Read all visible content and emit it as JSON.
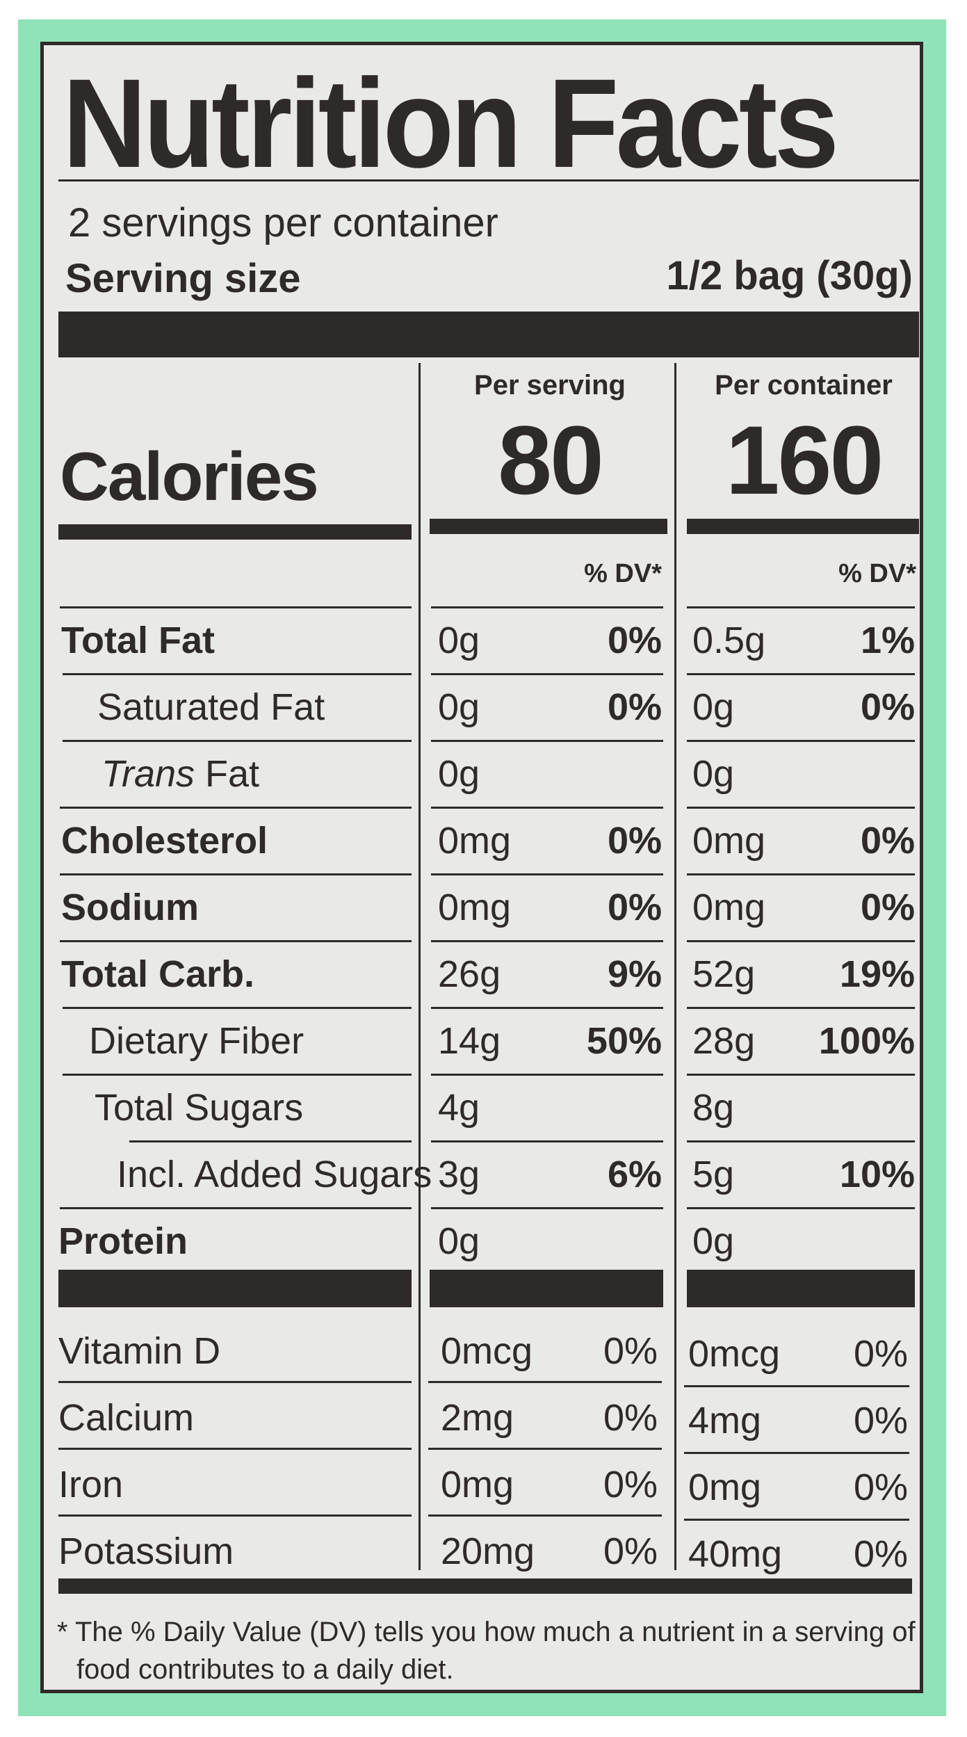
{
  "title": "Nutrition Facts",
  "servings_per_container": "2 servings per container",
  "serving_size_label": "Serving size",
  "serving_size_value": "1/2 bag (30g)",
  "calories_label": "Calories",
  "col1_header": "Per serving",
  "col2_header": "Per container",
  "col1_calories": "80",
  "col2_calories": "160",
  "dv_header": "% DV*",
  "rows": [
    {
      "label": "Total Fat",
      "a": "0g",
      "a_dv": "0%",
      "b": "0.5g",
      "b_dv": "1%"
    },
    {
      "label": "Saturated Fat",
      "a": "0g",
      "a_dv": "0%",
      "b": "0g",
      "b_dv": "0%"
    },
    {
      "label_italic": "Trans",
      "label": " Fat",
      "a": "0g",
      "a_dv": "",
      "b": "0g",
      "b_dv": ""
    },
    {
      "label": "Cholesterol",
      "a": "0mg",
      "a_dv": "0%",
      "b": "0mg",
      "b_dv": "0%"
    },
    {
      "label": "Sodium",
      "a": "0mg",
      "a_dv": "0%",
      "b": "0mg",
      "b_dv": "0%"
    },
    {
      "label": "Total Carb.",
      "a": "26g",
      "a_dv": "9%",
      "b": "52g",
      "b_dv": "19%"
    },
    {
      "label": "Dietary Fiber",
      "a": "14g",
      "a_dv": "50%",
      "b": "28g",
      "b_dv": "100%"
    },
    {
      "label": "Total Sugars",
      "a": "4g",
      "a_dv": "",
      "b": "8g",
      "b_dv": ""
    },
    {
      "label": "Incl. Added Sugars",
      "a": "3g",
      "a_dv": "6%",
      "b": "5g",
      "b_dv": "10%"
    },
    {
      "label": "Protein",
      "a": "0g",
      "a_dv": "",
      "b": "0g",
      "b_dv": ""
    }
  ],
  "vitamins": [
    {
      "label": "Vitamin D",
      "a": "0mcg",
      "a_dv": "0%",
      "b": "0mcg",
      "b_dv": "0%"
    },
    {
      "label": "Calcium",
      "a": "2mg",
      "a_dv": "0%",
      "b": "4mg",
      "b_dv": "0%"
    },
    {
      "label": "Iron",
      "a": "0mg",
      "a_dv": "0%",
      "b": "0mg",
      "b_dv": "0%"
    },
    {
      "label": "Potassium",
      "a": "20mg",
      "a_dv": "0%",
      "b": "40mg",
      "b_dv": "0%"
    }
  ],
  "footnote_line1": "* The % Daily Value (DV) tells you how much a nutrient in a serving of",
  "footnote_line2": "food contributes to a daily diet."
}
